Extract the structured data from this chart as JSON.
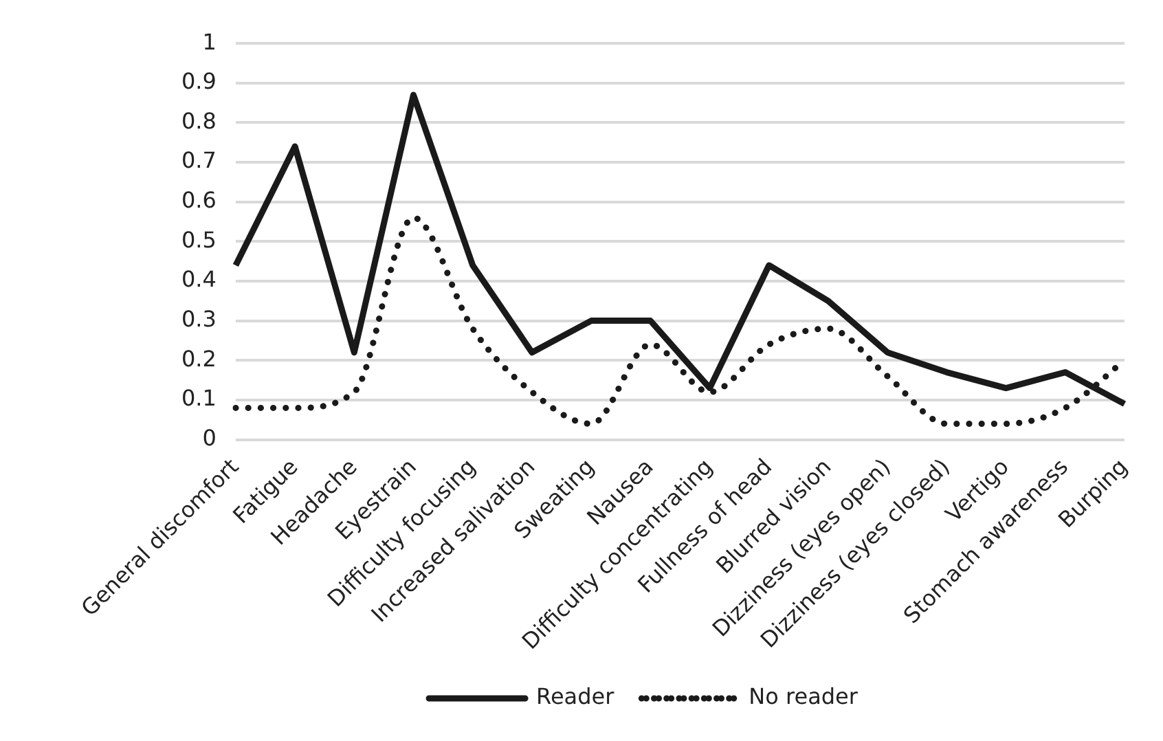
{
  "chart_data": {
    "type": "line",
    "categories": [
      "General discomfort",
      "Fatigue",
      "Headache",
      "Eyestrain",
      "Difficulty focusing",
      "Increased salivation",
      "Sweating",
      "Nausea",
      "Difficulty concentrating",
      "Fullness of head",
      "Blurred vision",
      "Dizziness (eyes open)",
      "Dizziness (eyes closed)",
      "Vertigo",
      "Stomach awareness",
      "Burping"
    ],
    "series": [
      {
        "name": "Reader",
        "color": "#1a1a1a",
        "line_style": "solid",
        "values": [
          0.44,
          0.74,
          0.22,
          0.87,
          0.44,
          0.22,
          0.3,
          0.3,
          0.13,
          0.44,
          0.35,
          0.22,
          0.17,
          0.13,
          0.17,
          0.09
        ]
      },
      {
        "name": "No reader",
        "color": "#1a1a1a",
        "line_style": "dotted",
        "values": [
          0.08,
          0.08,
          0.12,
          0.56,
          0.28,
          0.12,
          0.04,
          0.24,
          0.12,
          0.24,
          0.28,
          0.16,
          0.04,
          0.04,
          0.08,
          0.2
        ]
      }
    ],
    "ylim": [
      0,
      1
    ],
    "yticks": [
      0,
      0.1,
      0.2,
      0.3,
      0.4,
      0.5,
      0.6,
      0.7,
      0.8,
      0.9,
      1
    ],
    "grid": "y",
    "legend": "bottom",
    "marker": "none"
  }
}
